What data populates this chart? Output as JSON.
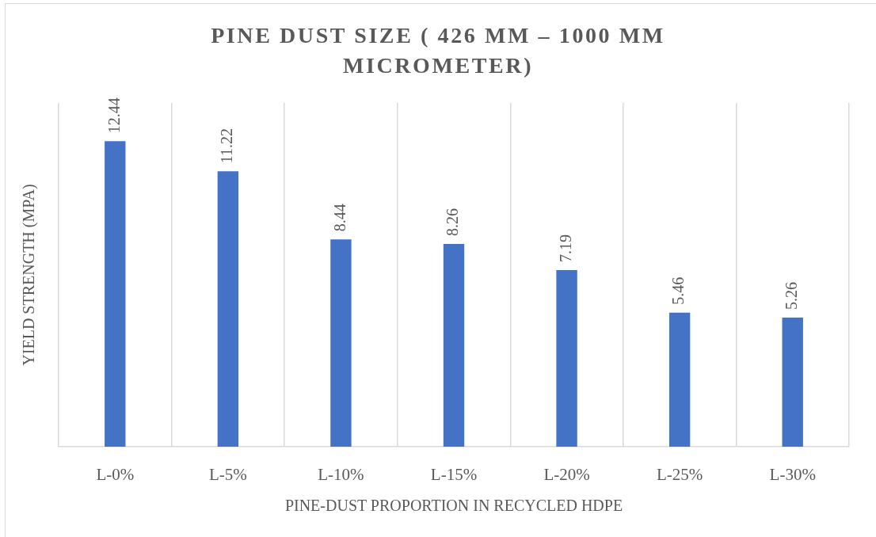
{
  "chart_data": {
    "type": "bar",
    "title": "PINE DUST SIZE ( 426 MM – 1000 MM MICROMETER)",
    "xlabel": "PINE-DUST PROPORTION IN RECYCLED HDPE",
    "ylabel": "YIELD STRENGTH (MPA)",
    "categories": [
      "L-0%",
      "L-5%",
      "L-10%",
      "L-15%",
      "L-20%",
      "L-25%",
      "L-30%"
    ],
    "values": [
      12.44,
      11.22,
      8.44,
      8.26,
      7.19,
      5.46,
      5.26
    ],
    "color": "#4472c4",
    "data_labels": true,
    "grid": "x"
  }
}
